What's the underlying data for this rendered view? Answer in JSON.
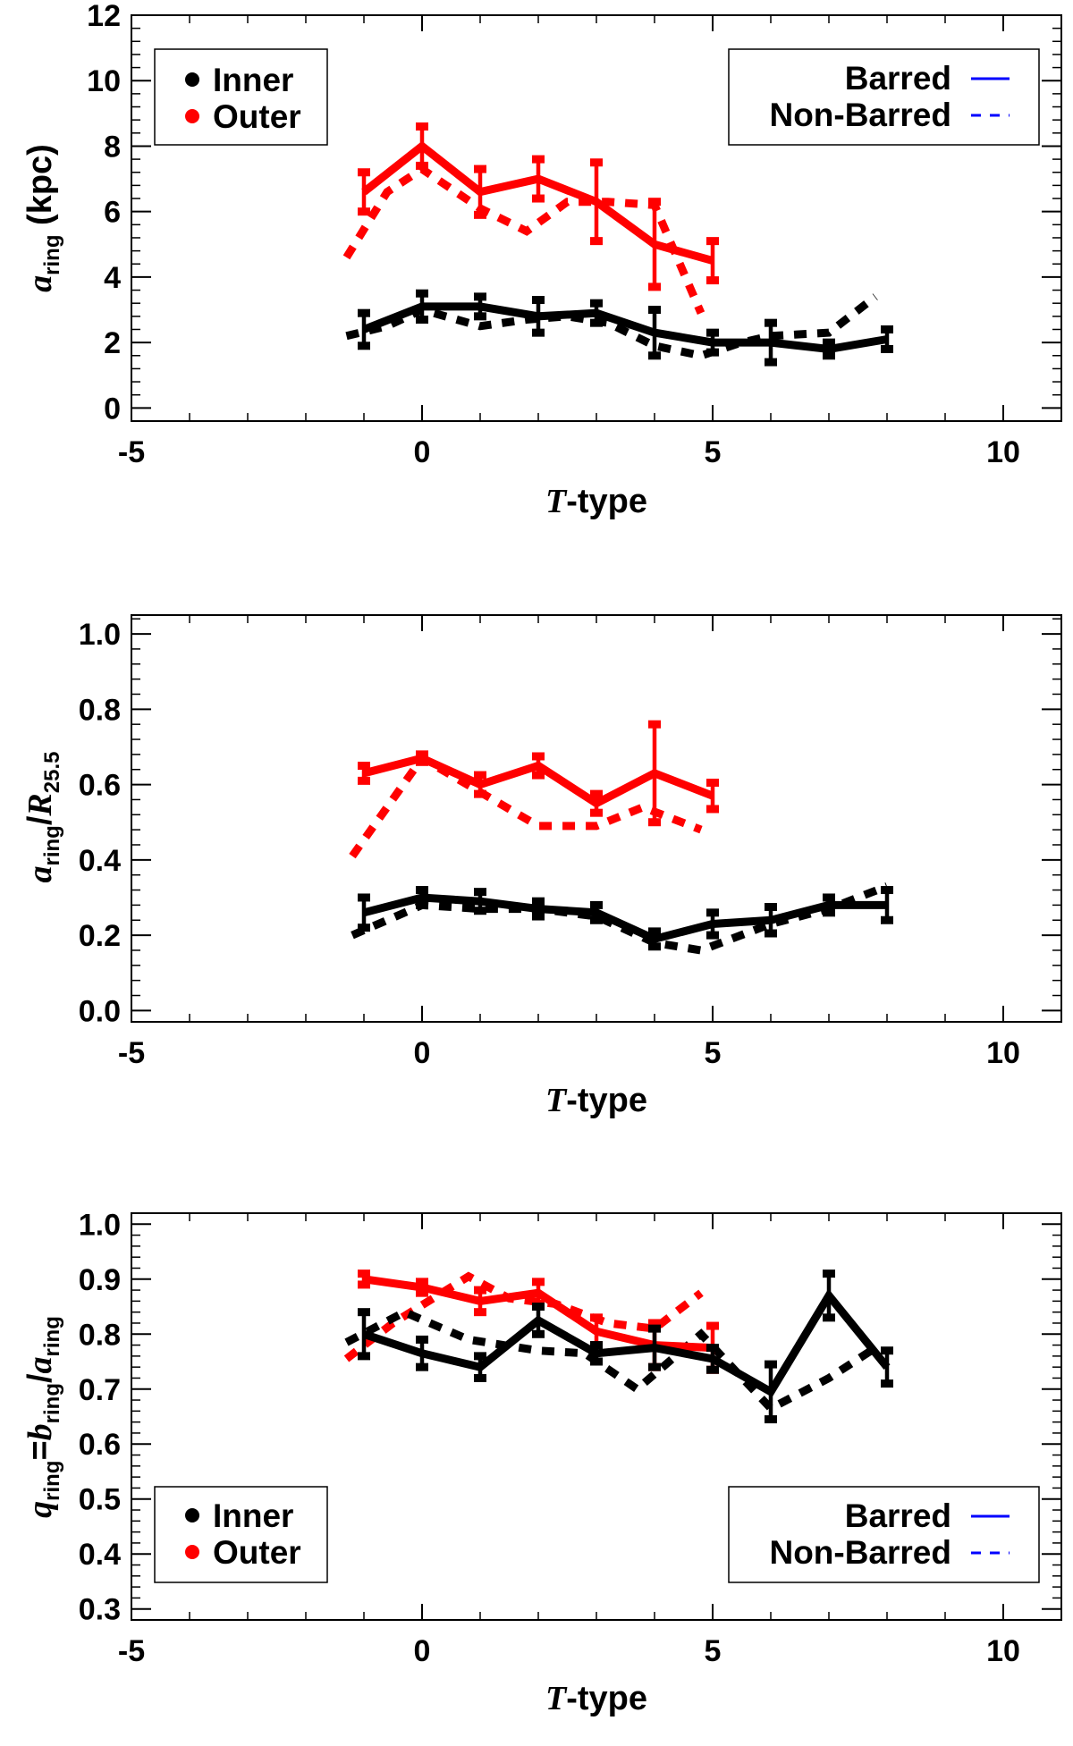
{
  "colors": {
    "inner": "#000000",
    "outer": "#ff0000",
    "legend_line": "#0000ff"
  },
  "legend": {
    "inner": "Inner",
    "outer": "Outer",
    "barred": "Barred",
    "non_barred": "Non-Barred"
  },
  "chart_data": [
    {
      "type": "line",
      "title": "",
      "xlabel": "T-type",
      "ylabel": "a_ring (kpc)",
      "ylabel_parts": {
        "var": "a",
        "sub": "ring",
        "rest": " (kpc)"
      },
      "xlim": [
        -5,
        11
      ],
      "ylim": [
        -0.4,
        12
      ],
      "xticks": [
        -5,
        0,
        5,
        10
      ],
      "yticks": [
        0,
        2,
        4,
        6,
        8,
        10,
        12
      ],
      "xtick_labels": [
        "-5",
        "0",
        "5",
        "10"
      ],
      "ytick_labels": [
        "0",
        "2",
        "4",
        "6",
        "8",
        "10",
        "12"
      ],
      "legend_placement": "top-left and top-right",
      "series": [
        {
          "name": "Outer Barred",
          "group": "outer",
          "style": "solid",
          "x": [
            -1,
            0,
            1,
            2,
            3,
            4,
            5
          ],
          "y": [
            6.6,
            8.0,
            6.6,
            7.0,
            6.3,
            5.0,
            4.5
          ],
          "err": [
            0.6,
            0.6,
            0.7,
            0.6,
            1.2,
            1.3,
            0.6
          ]
        },
        {
          "name": "Outer Non-Barred",
          "group": "outer",
          "style": "dashed",
          "x": [
            -1.3,
            -0.6,
            0,
            1,
            1.8,
            2.5,
            3.2,
            4,
            4.8
          ],
          "y": [
            4.6,
            6.6,
            7.3,
            6.1,
            5.4,
            6.3,
            6.3,
            6.2,
            2.9
          ],
          "err": []
        },
        {
          "name": "Inner Barred",
          "group": "inner",
          "style": "solid",
          "x": [
            -1,
            0,
            1,
            2,
            3,
            4,
            5,
            6,
            7,
            8
          ],
          "y": [
            2.4,
            3.1,
            3.1,
            2.8,
            2.9,
            2.3,
            2.0,
            2.0,
            1.8,
            2.1
          ],
          "err": [
            0.5,
            0.4,
            0.3,
            0.5,
            0.3,
            0.7,
            0.3,
            0.6,
            0.2,
            0.3
          ]
        },
        {
          "name": "Inner Non-Barred",
          "group": "inner",
          "style": "dashed",
          "x": [
            -1.3,
            -0.6,
            0,
            1,
            1.8,
            2.5,
            3.2,
            4,
            4.8,
            5.5,
            6,
            7,
            7.8
          ],
          "y": [
            2.2,
            2.5,
            3.0,
            2.5,
            2.7,
            2.8,
            2.6,
            1.9,
            1.6,
            2.0,
            2.2,
            2.3,
            3.4
          ],
          "err": []
        }
      ]
    },
    {
      "type": "line",
      "title": "",
      "xlabel": "T-type",
      "ylabel": "a_ring/R_25.5",
      "ylabel_parts": {
        "var": "a",
        "sub": "ring",
        "slash": "/",
        "var2": "R",
        "sub2": "25.5"
      },
      "xlim": [
        -5,
        11
      ],
      "ylim": [
        -0.03,
        1.05
      ],
      "xticks": [
        -5,
        0,
        5,
        10
      ],
      "yticks": [
        0.0,
        0.2,
        0.4,
        0.6,
        0.8,
        1.0
      ],
      "xtick_labels": [
        "-5",
        "0",
        "5",
        "10"
      ],
      "ytick_labels": [
        "0.0",
        "0.2",
        "0.4",
        "0.6",
        "0.8",
        "1.0"
      ],
      "series": [
        {
          "name": "Outer Barred",
          "group": "outer",
          "style": "solid",
          "x": [
            -1,
            0,
            1,
            2,
            3,
            4,
            5
          ],
          "y": [
            0.63,
            0.67,
            0.6,
            0.65,
            0.55,
            0.63,
            0.57
          ],
          "err": [
            0.02,
            0.01,
            0.025,
            0.025,
            0.025,
            0.13,
            0.035
          ]
        },
        {
          "name": "Outer Non-Barred",
          "group": "outer",
          "style": "dashed",
          "x": [
            -1.2,
            0,
            1,
            2,
            3,
            3.8,
            4.8
          ],
          "y": [
            0.41,
            0.67,
            0.58,
            0.49,
            0.49,
            0.54,
            0.48
          ],
          "err": []
        },
        {
          "name": "Inner Barred",
          "group": "inner",
          "style": "solid",
          "x": [
            -1,
            0,
            1,
            2,
            3,
            4,
            5,
            6,
            7,
            8
          ],
          "y": [
            0.26,
            0.3,
            0.29,
            0.27,
            0.26,
            0.19,
            0.23,
            0.24,
            0.28,
            0.28
          ],
          "err": [
            0.04,
            0.02,
            0.025,
            0.02,
            0.02,
            0.02,
            0.03,
            0.035,
            0.02,
            0.04
          ]
        },
        {
          "name": "Inner Non-Barred",
          "group": "inner",
          "style": "dashed",
          "x": [
            -1.2,
            0,
            1,
            2,
            3,
            4,
            4.8,
            6,
            7,
            8
          ],
          "y": [
            0.2,
            0.28,
            0.27,
            0.27,
            0.25,
            0.18,
            0.16,
            0.23,
            0.27,
            0.33
          ],
          "err": []
        }
      ]
    },
    {
      "type": "line",
      "title": "",
      "xlabel": "T-type",
      "ylabel": "q_ring=b_ring/a_ring",
      "ylabel_parts": {
        "var": "q",
        "sub": "ring",
        "eq": "=",
        "var2": "b",
        "sub2": "ring",
        "slash": "/",
        "var3": "a",
        "sub3": "ring"
      },
      "xlim": [
        -5,
        11
      ],
      "ylim": [
        0.28,
        1.02
      ],
      "xticks": [
        -5,
        0,
        5,
        10
      ],
      "yticks": [
        0.3,
        0.4,
        0.5,
        0.6,
        0.7,
        0.8,
        0.9,
        1.0
      ],
      "xtick_labels": [
        "-5",
        "0",
        "5",
        "10"
      ],
      "ytick_labels": [
        "0.3",
        "0.4",
        "0.5",
        "0.6",
        "0.7",
        "0.8",
        "0.9",
        "1.0"
      ],
      "legend_placement": "bottom-left and bottom-right",
      "series": [
        {
          "name": "Outer Barred",
          "group": "outer",
          "style": "solid",
          "x": [
            -1,
            0,
            1,
            2,
            3,
            4,
            5
          ],
          "y": [
            0.9,
            0.885,
            0.86,
            0.875,
            0.805,
            0.78,
            0.775
          ],
          "err": [
            0.01,
            0.01,
            0.02,
            0.02,
            0.025,
            0.04,
            0.04
          ]
        },
        {
          "name": "Outer Non-Barred",
          "group": "outer",
          "style": "dashed",
          "x": [
            -1.3,
            -0.5,
            0.8,
            1.5,
            2.3,
            3.2,
            4,
            4.8
          ],
          "y": [
            0.755,
            0.82,
            0.905,
            0.865,
            0.855,
            0.82,
            0.81,
            0.875
          ],
          "err": []
        },
        {
          "name": "Inner Barred",
          "group": "inner",
          "style": "solid",
          "x": [
            -1,
            0,
            1,
            2,
            3,
            4,
            5,
            6,
            7,
            8
          ],
          "y": [
            0.8,
            0.765,
            0.74,
            0.825,
            0.765,
            0.775,
            0.755,
            0.695,
            0.87,
            0.74
          ],
          "err": [
            0.04,
            0.025,
            0.02,
            0.025,
            0.015,
            0.035,
            0.02,
            0.05,
            0.04,
            0.03
          ]
        },
        {
          "name": "Inner Non-Barred",
          "group": "inner",
          "style": "dashed",
          "x": [
            -1.3,
            -0.3,
            0.8,
            2,
            2.8,
            3.7,
            4.8,
            6,
            7,
            7.8
          ],
          "y": [
            0.785,
            0.84,
            0.79,
            0.77,
            0.765,
            0.7,
            0.8,
            0.665,
            0.72,
            0.775
          ],
          "err": []
        }
      ]
    }
  ]
}
